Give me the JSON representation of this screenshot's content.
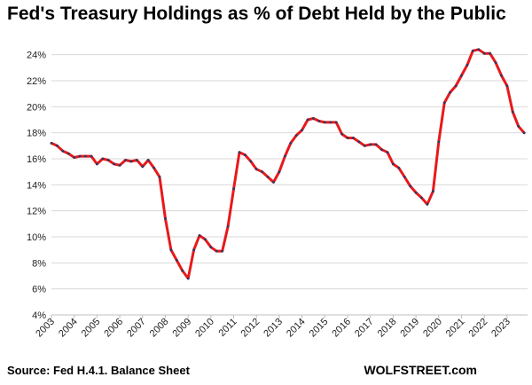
{
  "chart_data": {
    "type": "line",
    "title": "Fed's Treasury Holdings as % of Debt Held by the Public",
    "xlabel": "",
    "ylabel": "",
    "ylim": [
      4,
      25
    ],
    "yticks": [
      4,
      6,
      8,
      10,
      12,
      14,
      16,
      18,
      20,
      22,
      24
    ],
    "ytick_format": "%",
    "xlim": [
      2003,
      2023.9
    ],
    "xticks": [
      2003,
      2004,
      2005,
      2006,
      2007,
      2008,
      2009,
      2010,
      2011,
      2012,
      2013,
      2014,
      2015,
      2016,
      2017,
      2018,
      2019,
      2020,
      2021,
      2022,
      2023
    ],
    "grid": "horizontal",
    "line_color": "#e8191a",
    "marker_color": "#2b3a67",
    "x": [
      2003.0,
      2003.25,
      2003.5,
      2003.75,
      2004.0,
      2004.25,
      2004.5,
      2004.75,
      2005.0,
      2005.25,
      2005.5,
      2005.75,
      2006.0,
      2006.25,
      2006.5,
      2006.75,
      2007.0,
      2007.25,
      2007.5,
      2007.75,
      2008.0,
      2008.25,
      2008.5,
      2008.75,
      2009.0,
      2009.25,
      2009.5,
      2009.75,
      2010.0,
      2010.25,
      2010.5,
      2010.75,
      2011.0,
      2011.25,
      2011.5,
      2011.75,
      2012.0,
      2012.25,
      2012.5,
      2012.75,
      2013.0,
      2013.25,
      2013.5,
      2013.75,
      2014.0,
      2014.25,
      2014.5,
      2014.75,
      2015.0,
      2015.25,
      2015.5,
      2015.75,
      2016.0,
      2016.25,
      2016.5,
      2016.75,
      2017.0,
      2017.25,
      2017.5,
      2017.75,
      2018.0,
      2018.25,
      2018.5,
      2018.75,
      2019.0,
      2019.25,
      2019.5,
      2019.75,
      2020.0,
      2020.25,
      2020.5,
      2020.75,
      2021.0,
      2021.25,
      2021.5,
      2021.75,
      2022.0,
      2022.25,
      2022.5,
      2022.75,
      2023.0,
      2023.25,
      2023.5,
      2023.75
    ],
    "series": [
      {
        "values": [
          17.2,
          17.0,
          16.6,
          16.4,
          16.1,
          16.2,
          16.2,
          16.2,
          15.6,
          16.0,
          15.9,
          15.6,
          15.5,
          15.9,
          15.8,
          15.9,
          15.4,
          15.9,
          15.3,
          14.6,
          11.4,
          9.0,
          8.2,
          7.4,
          6.8,
          9.0,
          10.1,
          9.8,
          9.2,
          8.9,
          8.9,
          10.8,
          13.7,
          16.5,
          16.3,
          15.8,
          15.2,
          15.0,
          14.6,
          14.2,
          15.0,
          16.2,
          17.2,
          17.8,
          18.2,
          19.0,
          19.1,
          18.9,
          18.8,
          18.8,
          18.8,
          17.9,
          17.6,
          17.6,
          17.3,
          17.0,
          17.1,
          17.1,
          16.7,
          16.5,
          15.6,
          15.3,
          14.6,
          13.9,
          13.4,
          13.0,
          12.5,
          13.5,
          17.3,
          20.3,
          21.1,
          21.6,
          22.4,
          23.2,
          24.3,
          24.4,
          24.1,
          24.1,
          23.4,
          22.4,
          21.6,
          19.6,
          18.5,
          18.0
        ]
      }
    ]
  },
  "footer": {
    "source": "Source: Fed H.4.1. Balance Sheet",
    "brand": "WOLFSTREET.com"
  }
}
